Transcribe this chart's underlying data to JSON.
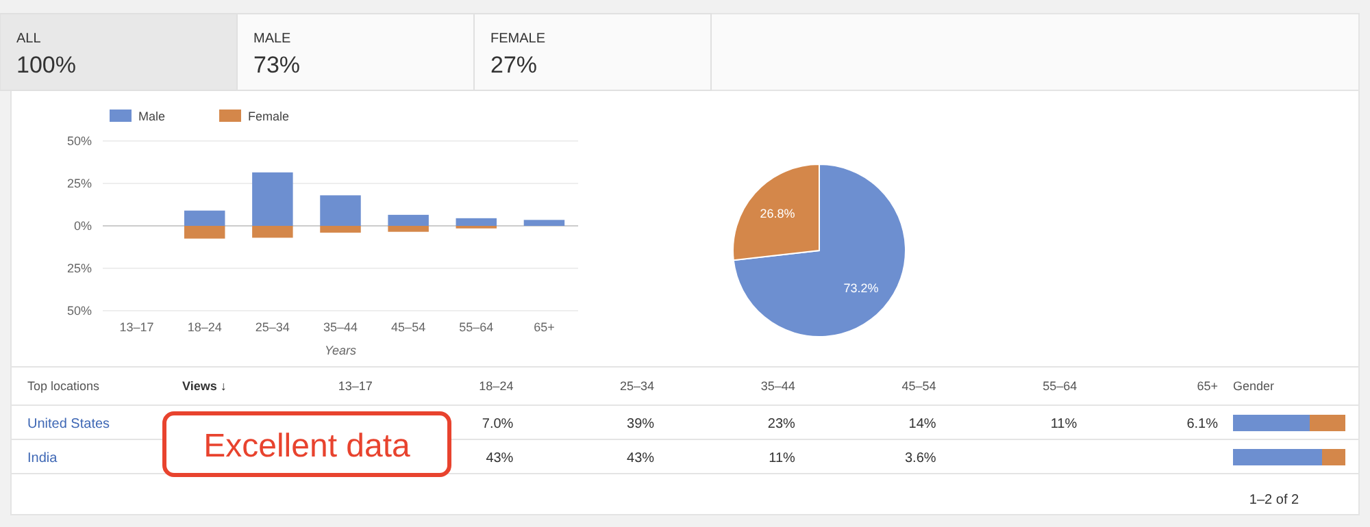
{
  "chart_data": [
    {
      "type": "other",
      "annotations": [
        "ALL",
        "100%",
        "MALE",
        "73%",
        "FEMALE",
        "27%"
      ]
    },
    {
      "type": "bar",
      "stacked": true,
      "categories": [
        "13–17",
        "18–24",
        "25–34",
        "35–44",
        "45–54",
        "55–64",
        "65+"
      ],
      "series": [
        {
          "name": "Male",
          "color": "#6d8fd0",
          "values": [
            0,
            9,
            31.5,
            18,
            6.5,
            4.5,
            3.5
          ]
        },
        {
          "name": "Female",
          "color": "#d4874a",
          "values": [
            0,
            -7.5,
            -7,
            -4,
            -3.5,
            -1.5,
            0
          ]
        }
      ],
      "xlabel": "Years",
      "ylim": [
        -50,
        50
      ],
      "yticks": [
        {
          "value": 50,
          "label": "50%"
        },
        {
          "value": 25,
          "label": "25%"
        },
        {
          "value": 0,
          "label": "0%"
        },
        {
          "value": -25,
          "label": "25%"
        },
        {
          "value": -50,
          "label": "50%"
        }
      ],
      "grid": "y",
      "legend": "top left"
    },
    {
      "type": "pie",
      "categories": [
        null,
        null
      ],
      "values": [
        73.2,
        26.8
      ],
      "colors": [
        "#6d8fd0",
        "#d4874a"
      ],
      "value_labels": [
        "73.2%",
        "26.8%"
      ]
    },
    {
      "type": "other",
      "categories": [
        "13–17",
        "18–24",
        "25–34",
        "35–44",
        "45–54",
        "55–64",
        "65+"
      ],
      "y_categories": [
        "United States",
        "India"
      ],
      "cell_labels": [
        [
          null,
          "7.0%",
          "39%",
          "23%",
          "14%",
          "11%",
          "6.1%"
        ],
        [
          null,
          "43%",
          "43%",
          "11%",
          "3.6%",
          null,
          null
        ]
      ],
      "annotations": [
        "Top locations",
        "Views ↓",
        "Gender",
        "Excellent data",
        "1–2 of 2"
      ]
    }
  ]
}
